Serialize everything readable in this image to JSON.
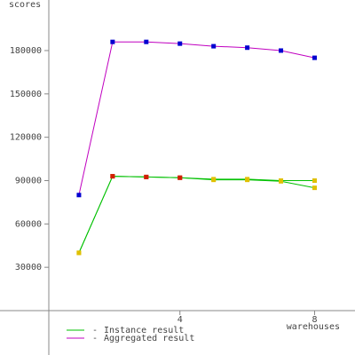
{
  "chart_data": {
    "type": "line",
    "ylabel": "scores",
    "xlabel": "warehouses",
    "x": [
      1,
      2,
      3,
      4,
      5,
      6,
      7,
      8
    ],
    "xlim": [
      0,
      9.2
    ],
    "xticks": [
      4,
      8
    ],
    "ylim": [
      0,
      215000
    ],
    "yticks": [
      30000,
      60000,
      90000,
      120000,
      150000,
      180000
    ],
    "grid": false,
    "series": [
      {
        "name": "Instance result",
        "color": "#00c000",
        "values": [
          40000,
          93000,
          92500,
          92000,
          91000,
          91000,
          90000,
          90000
        ],
        "marker_colors": [
          "#e0c000",
          "#d02000",
          "#d02000",
          "#d02000",
          "#e0c000",
          "#e0c000",
          "#e0c000",
          "#e0c000"
        ]
      },
      {
        "color": "#00c000",
        "values": [
          40000,
          93000,
          92500,
          92000,
          90500,
          90500,
          89500,
          85000
        ],
        "marker_colors": [
          "#e0c000",
          "#d02000",
          "#d02000",
          "#d02000",
          "#e0c000",
          "#e0c000",
          "#e0c000",
          "#e0c000"
        ]
      },
      {
        "name": "Aggregated result",
        "color": "#c000c0",
        "values": [
          80000,
          186000,
          186000,
          184800,
          183000,
          182000,
          180000,
          175000
        ],
        "marker_colors": [
          "#0000d0",
          "#0000d0",
          "#0000d0",
          "#0000d0",
          "#0000d0",
          "#0000d0",
          "#0000d0",
          "#0000d0"
        ]
      }
    ]
  }
}
